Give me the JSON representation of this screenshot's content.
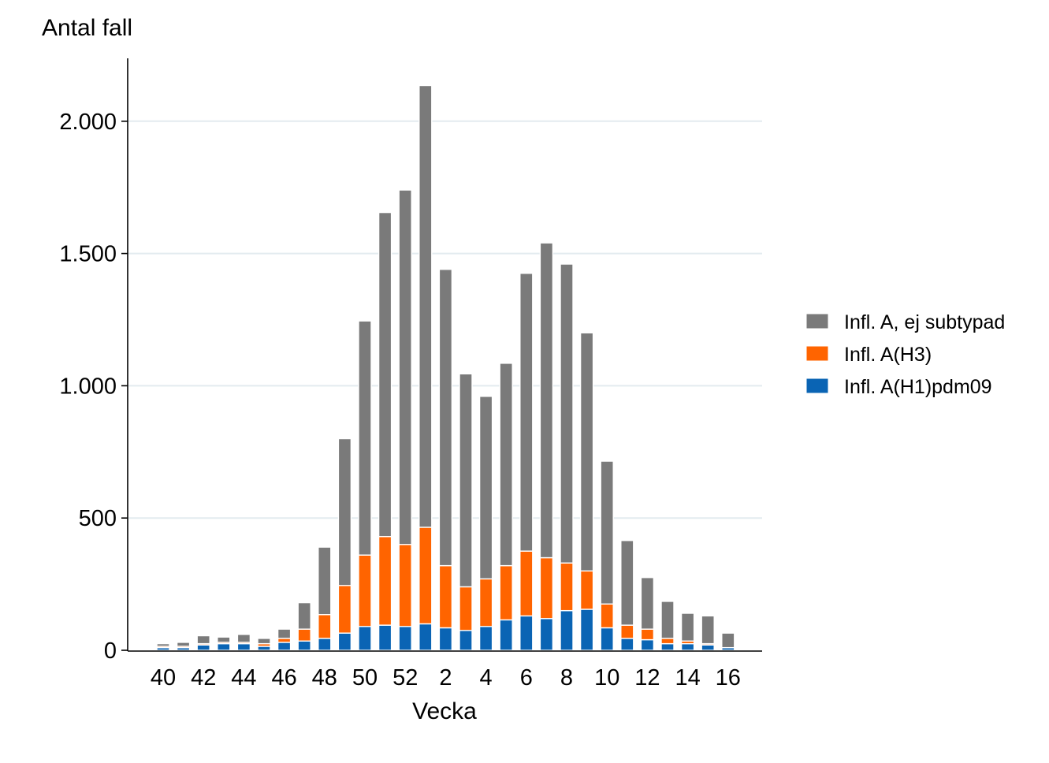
{
  "chart_data": {
    "type": "bar",
    "stacked": true,
    "ylabel": "Antal fall",
    "xlabel": "Vecka",
    "ylim": [
      0,
      2200
    ],
    "yticks": [
      0,
      500,
      1000,
      1500,
      2000
    ],
    "ytick_labels": [
      "0",
      "500",
      "1.000",
      "1.500",
      "2.000"
    ],
    "grid": "horizontal",
    "legend_position": "right",
    "categories": [
      "40",
      "41",
      "42",
      "43",
      "44",
      "45",
      "46",
      "47",
      "48",
      "49",
      "50",
      "51",
      "52",
      "1",
      "2",
      "3",
      "4",
      "5",
      "6",
      "7",
      "8",
      "9",
      "10",
      "11",
      "12",
      "13",
      "14",
      "15",
      "16"
    ],
    "xtick_labels": [
      "40",
      "42",
      "44",
      "46",
      "48",
      "50",
      "52",
      "2",
      "4",
      "6",
      "8",
      "10",
      "12",
      "14",
      "16"
    ],
    "series": [
      {
        "name": "Infl. A(H1)pdm09",
        "color": "#0a64b4",
        "values": [
          10,
          10,
          20,
          25,
          25,
          15,
          30,
          35,
          45,
          65,
          90,
          95,
          90,
          100,
          85,
          75,
          90,
          115,
          130,
          120,
          150,
          155,
          85,
          45,
          40,
          25,
          25,
          20,
          10
        ]
      },
      {
        "name": "Infl. A(H3)",
        "color": "#ff6400",
        "values": [
          5,
          5,
          5,
          5,
          5,
          10,
          15,
          45,
          90,
          180,
          270,
          335,
          310,
          365,
          235,
          165,
          180,
          205,
          245,
          230,
          180,
          145,
          90,
          50,
          40,
          20,
          10,
          5,
          0
        ]
      },
      {
        "name": "Infl. A, ej subtypad",
        "color": "#7a7a7a",
        "values": [
          10,
          15,
          30,
          20,
          30,
          20,
          35,
          100,
          255,
          555,
          885,
          1225,
          1340,
          1670,
          1120,
          805,
          690,
          765,
          1050,
          1190,
          1130,
          900,
          540,
          320,
          195,
          140,
          105,
          105,
          55
        ]
      }
    ]
  }
}
